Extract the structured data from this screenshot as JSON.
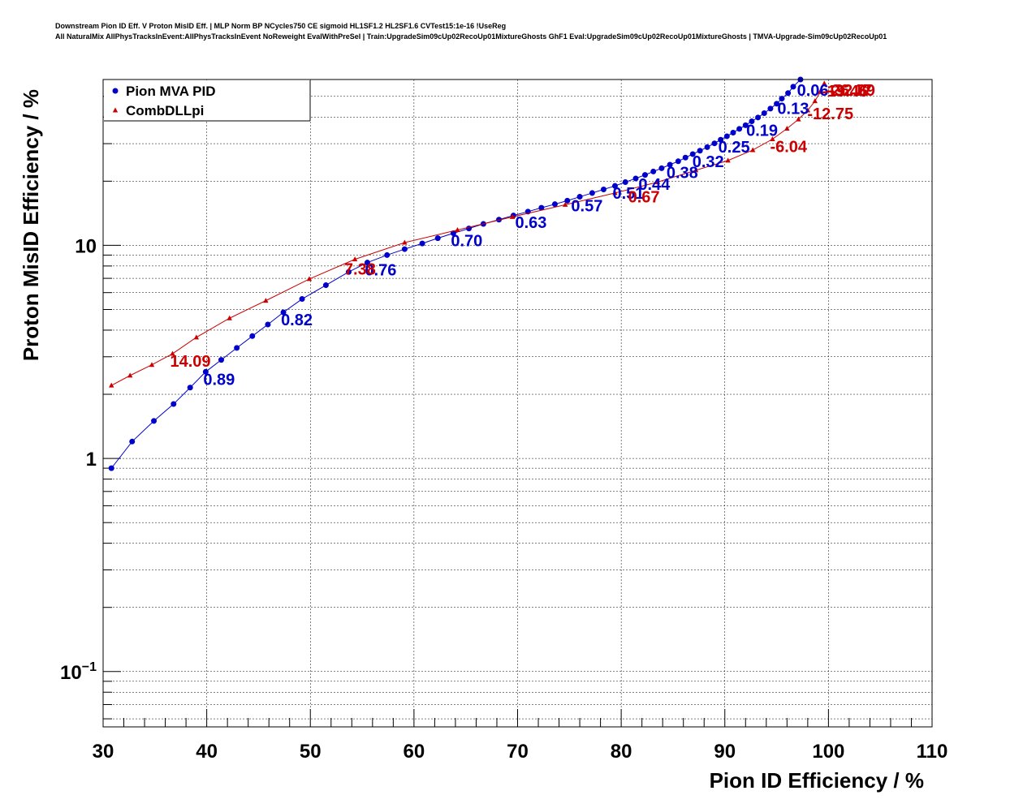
{
  "header": {
    "line1": "Downstream Pion ID Eff. V Proton MisID Eff. | MLP Norm BP NCycles750 CE sigmoid HL1SF1.2 HL2SF1.6 CVTest15:1e-16 !UseReg",
    "line2": "All NaturalMix AllPhysTracksInEvent:AllPhysTracksInEvent NoReweight EvalWithPreSel | Train:UpgradeSim09cUp02RecoUp01MixtureGhosts GhF1 Eval:UpgradeSim09cUp02RecoUp01MixtureGhosts | TMVA-Upgrade-Sim09cUp02RecoUp01"
  },
  "colors": {
    "mva": "#0000cc",
    "dll": "#cc0000",
    "grid": "#000000"
  },
  "chart_data": {
    "type": "scatter",
    "title": "",
    "xlabel": "Pion ID Efficiency / %",
    "ylabel": "Proton MisID Efficiency / %",
    "xlim": [
      30,
      110
    ],
    "ylim": [
      0.055,
      60
    ],
    "ylog": true,
    "grid": true,
    "legend_position": "top-left",
    "x_ticks": [
      {
        "value": 30,
        "label": "30"
      },
      {
        "value": 40,
        "label": "40"
      },
      {
        "value": 50,
        "label": "50"
      },
      {
        "value": 60,
        "label": "60"
      },
      {
        "value": 70,
        "label": "70"
      },
      {
        "value": 80,
        "label": "80"
      },
      {
        "value": 90,
        "label": "90"
      },
      {
        "value": 100,
        "label": "100"
      },
      {
        "value": 110,
        "label": "110"
      }
    ],
    "y_ticks": [
      {
        "value": 0.1,
        "base": "10",
        "exp": "−1"
      },
      {
        "value": 1,
        "base": "1",
        "exp": ""
      },
      {
        "value": 10,
        "base": "10",
        "exp": ""
      }
    ],
    "series": [
      {
        "name": "Pion MVA PID",
        "color": "#0000cc",
        "marker": "circle",
        "x": [
          30.8,
          32.8,
          34.9,
          36.8,
          38.4,
          39.9,
          41.4,
          42.9,
          44.4,
          45.9,
          47.4,
          49.2,
          51.5,
          53.7,
          55.5,
          57.4,
          59.1,
          60.8,
          62.3,
          63.8,
          65.3,
          66.7,
          68.2,
          69.6,
          71.0,
          72.3,
          73.6,
          74.8,
          76.0,
          77.2,
          78.3,
          79.4,
          80.4,
          81.4,
          82.3,
          83.1,
          83.9,
          84.7,
          85.5,
          86.2,
          86.9,
          87.6,
          88.3,
          89.0,
          89.6,
          90.2,
          90.8,
          91.4,
          92.0,
          92.6,
          93.2,
          93.8,
          94.4,
          95.0,
          95.5,
          96.1,
          96.6,
          97.3
        ],
        "y": [
          0.9,
          1.2,
          1.5,
          1.8,
          2.15,
          2.55,
          2.9,
          3.3,
          3.75,
          4.25,
          4.85,
          5.6,
          6.5,
          7.5,
          8.3,
          9.0,
          9.6,
          10.2,
          10.8,
          11.4,
          12.0,
          12.6,
          13.2,
          13.8,
          14.4,
          15.0,
          15.6,
          16.2,
          16.9,
          17.6,
          18.3,
          19.0,
          19.8,
          20.6,
          21.4,
          22.2,
          23.0,
          23.9,
          24.8,
          25.8,
          26.8,
          27.8,
          28.9,
          30.1,
          31.3,
          32.5,
          33.8,
          35.2,
          36.6,
          38.2,
          39.8,
          41.7,
          43.8,
          46.2,
          48.8,
          51.8,
          55.5,
          60.0
        ],
        "point_labels": [
          {
            "x": 39.9,
            "y": 2.55,
            "text": "0.89"
          },
          {
            "x": 47.4,
            "y": 4.85,
            "text": "0.82"
          },
          {
            "x": 55.5,
            "y": 8.3,
            "text": "0.76"
          },
          {
            "x": 63.8,
            "y": 11.4,
            "text": "0.70"
          },
          {
            "x": 70.0,
            "y": 13.9,
            "text": "0.63"
          },
          {
            "x": 75.4,
            "y": 16.6,
            "text": "0.57"
          },
          {
            "x": 79.4,
            "y": 19.0,
            "text": "0.51"
          },
          {
            "x": 81.9,
            "y": 21.0,
            "text": "0.44"
          },
          {
            "x": 84.6,
            "y": 23.8,
            "text": "0.38"
          },
          {
            "x": 87.1,
            "y": 26.8,
            "text": "0.32"
          },
          {
            "x": 89.6,
            "y": 31.3,
            "text": "0.25"
          },
          {
            "x": 92.3,
            "y": 37.5,
            "text": "0.19"
          },
          {
            "x": 95.3,
            "y": 47.5,
            "text": "0.13"
          },
          {
            "x": 97.2,
            "y": 59.0,
            "text": "0.06"
          }
        ]
      },
      {
        "name": "CombDLLpi",
        "color": "#cc0000",
        "marker": "triangle",
        "x": [
          30.8,
          32.6,
          34.7,
          36.7,
          39.0,
          42.2,
          45.7,
          49.9,
          54.3,
          59.1,
          64.2,
          69.5,
          74.6,
          79.4,
          83.5,
          87.2,
          90.3,
          92.7,
          94.6,
          96.0,
          97.1,
          98.0,
          98.7,
          99.2,
          99.6,
          100.0,
          100.3
        ],
        "y": [
          2.2,
          2.45,
          2.75,
          3.1,
          3.7,
          4.55,
          5.5,
          6.95,
          8.6,
          10.3,
          11.8,
          13.6,
          15.5,
          17.6,
          19.8,
          22.5,
          25.0,
          28.0,
          31.5,
          35.3,
          39.0,
          43.0,
          47.5,
          52.5,
          57.5,
          63.0,
          68.0
        ],
        "point_labels": [
          {
            "x": 36.7,
            "y": 3.1,
            "text": "14.09"
          },
          {
            "x": 53.5,
            "y": 8.4,
            "text": "7.38"
          },
          {
            "x": 80.9,
            "y": 18.3,
            "text": "0.67"
          },
          {
            "x": 94.6,
            "y": 31.5,
            "text": "-6.04"
          },
          {
            "x": 98.2,
            "y": 45.0,
            "text": "-12.75"
          },
          {
            "x": 99.6,
            "y": 57.5,
            "text": "-19.46"
          },
          {
            "x": 100.0,
            "y": 63.0,
            "text": "-26.17"
          },
          {
            "x": 100.3,
            "y": 68.0,
            "text": "-32.89"
          }
        ]
      }
    ]
  }
}
